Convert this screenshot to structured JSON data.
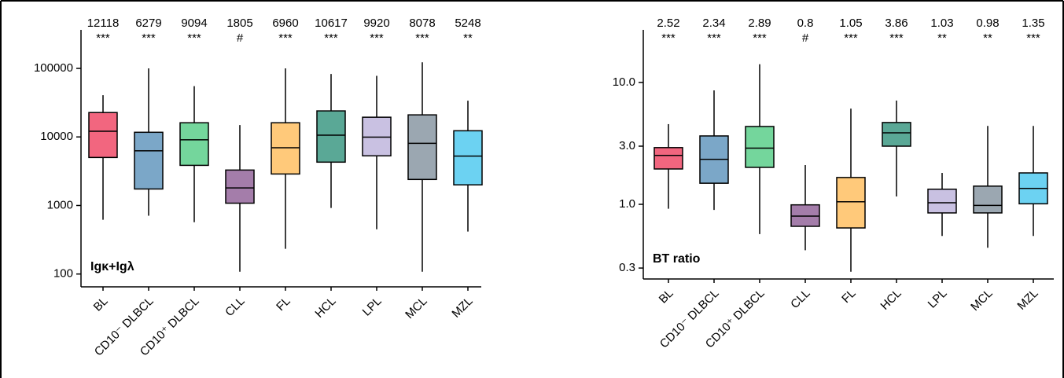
{
  "chart_data": [
    {
      "type": "box",
      "label": "Igκ+Igλ",
      "log": true,
      "categories": [
        "BL",
        "CD10⁻ DLBCL",
        "CD10⁺ DLBCL",
        "CLL",
        "FL",
        "HCL",
        "LPL",
        "MCL",
        "MZL"
      ],
      "colors": [
        "#f2667f",
        "#7ba7c8",
        "#74d69c",
        "#a47daa",
        "#ffc97a",
        "#5aa896",
        "#c9c1e2",
        "#9ba7b1",
        "#6cd2f2"
      ],
      "whisker_low": [
        620,
        710,
        570,
        108,
        233,
        920,
        450,
        108,
        417
      ],
      "q1": [
        5020,
        1740,
        3850,
        1080,
        2880,
        4290,
        5300,
        2400,
        2000
      ],
      "median": [
        12118,
        6279,
        9094,
        1805,
        6960,
        10617,
        9920,
        8078,
        5248
      ],
      "q3": [
        22700,
        11700,
        16100,
        3290,
        16100,
        24000,
        19400,
        21000,
        12300
      ],
      "whisker_high": [
        40600,
        100000,
        55000,
        14900,
        100000,
        83000,
        78000,
        123000,
        33800
      ],
      "significance": [
        "***",
        "***",
        "***",
        "#",
        "***",
        "***",
        "***",
        "***",
        "**"
      ],
      "ylim": [
        65,
        365000
      ],
      "yticks": [
        100,
        1000,
        10000,
        100000
      ]
    },
    {
      "type": "box",
      "label": "BT ratio",
      "log": true,
      "categories": [
        "BL",
        "CD10⁻ DLBCL",
        "CD10⁺ DLBCL",
        "CLL",
        "FL",
        "HCL",
        "LPL",
        "MCL",
        "MZL"
      ],
      "colors": [
        "#f2667f",
        "#7ba7c8",
        "#74d69c",
        "#a47daa",
        "#ffc97a",
        "#5aa896",
        "#c9c1e2",
        "#9ba7b1",
        "#6cd2f2"
      ],
      "whisker_low": [
        0.92,
        0.9,
        0.57,
        0.42,
        0.28,
        1.16,
        0.55,
        0.44,
        0.55
      ],
      "q1": [
        1.95,
        1.49,
        2.01,
        0.66,
        0.64,
        3.0,
        0.85,
        0.85,
        1.01
      ],
      "median": [
        2.52,
        2.34,
        2.89,
        0.8,
        1.05,
        3.86,
        1.03,
        0.98,
        1.35
      ],
      "q3": [
        2.92,
        3.64,
        4.35,
        0.99,
        1.66,
        4.69,
        1.33,
        1.41,
        1.81
      ],
      "whisker_high": [
        4.55,
        8.6,
        14.1,
        2.1,
        6.1,
        7.1,
        1.81,
        4.4,
        4.4
      ],
      "significance": [
        "***",
        "***",
        "***",
        "#",
        "***",
        "***",
        "**",
        "**",
        "***"
      ],
      "ylim": [
        0.244,
        27
      ],
      "yticks": [
        0.3,
        {
          "value": 1,
          "label": "1.0"
        },
        {
          "value": 3,
          "label": "3.0"
        },
        {
          "value": 10,
          "label": "10.0"
        }
      ]
    }
  ]
}
